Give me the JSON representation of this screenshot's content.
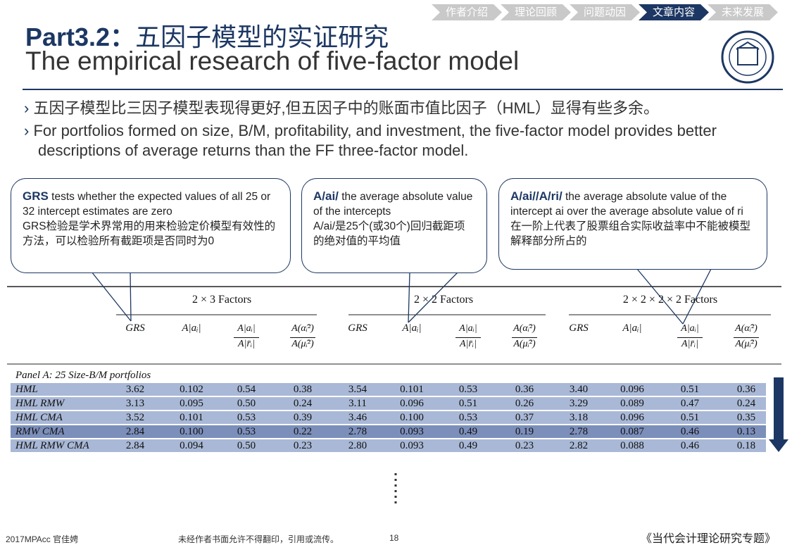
{
  "nav": [
    "作者介绍",
    "理论回顾",
    "问题动因",
    "文章内容",
    "未来发展"
  ],
  "title": {
    "part": "Part3.2：",
    "cn": "五因子模型的实证研究",
    "en": "The empirical research of five-factor model"
  },
  "bullets": [
    "五因子模型比三因子模型表现得更好,但五因子中的账面市值比因子（HML）显得有些多余。",
    "For portfolios formed on size, B/M, profitability, and investment, the five-factor model provides better descriptions of average returns than the FF three-factor model."
  ],
  "callouts": [
    {
      "term": "GRS",
      "text": " tests  whether the expected values of all 25 or 32 intercept estimates are zero",
      "cn": "GRS检验是学术界常用的用来检验定价模型有效性的方法，可以检验所有截距项是否同时为0"
    },
    {
      "term": "A/ai/",
      "text": " the average absolute value of the intercepts",
      "cn": " A/ai/是25个(或30个)回归截距项的绝对值的平均值"
    },
    {
      "term": "A/ai//A/ri/",
      "text": " the average absolute value of the intercept ai over the average absolute value of ri",
      "cn": "在一阶上代表了股票组合实际收益率中不能被模型解释部分所占的"
    }
  ],
  "table": {
    "groups": [
      "2 × 3 Factors",
      "2 × 2 Factors",
      "2 × 2 × 2 × 2 Factors"
    ],
    "columns": [
      {
        "text": "GRS"
      },
      {
        "text": "A|aᵢ|"
      },
      {
        "num": "A|aᵢ|",
        "den": "A|r̄ᵢ|"
      },
      {
        "num": "A(α̂ᵢ²)",
        "den": "A(μ̂ᵢ²)"
      }
    ],
    "panel": "Panel A: 25 Size-B/M portfolios",
    "rows": [
      {
        "label": "HML",
        "cells": [
          "3.62",
          "0.102",
          "0.54",
          "0.38",
          "3.54",
          "0.101",
          "0.53",
          "0.36",
          "3.40",
          "0.096",
          "0.51",
          "0.36"
        ]
      },
      {
        "label": "HML RMW",
        "cells": [
          "3.13",
          "0.095",
          "0.50",
          "0.24",
          "3.11",
          "0.096",
          "0.51",
          "0.26",
          "3.29",
          "0.089",
          "0.47",
          "0.24"
        ]
      },
      {
        "label": "HML CMA",
        "cells": [
          "3.52",
          "0.101",
          "0.53",
          "0.39",
          "3.46",
          "0.100",
          "0.53",
          "0.37",
          "3.18",
          "0.096",
          "0.51",
          "0.35"
        ]
      },
      {
        "label": "RMW CMA",
        "cells": [
          "2.84",
          "0.100",
          "0.53",
          "0.22",
          "2.78",
          "0.093",
          "0.49",
          "0.19",
          "2.78",
          "0.087",
          "0.46",
          "0.13"
        ]
      },
      {
        "label": "HML RMW CMA",
        "cells": [
          "2.84",
          "0.094",
          "0.50",
          "0.23",
          "2.80",
          "0.093",
          "0.49",
          "0.23",
          "2.82",
          "0.088",
          "0.46",
          "0.18"
        ]
      }
    ]
  },
  "footer": {
    "author": "2017MPAcc 官佳娉",
    "notice": "未经作者书面允许不得翻印，引用或流传。",
    "page": "18",
    "series": "《当代会计理论研究专题》"
  }
}
